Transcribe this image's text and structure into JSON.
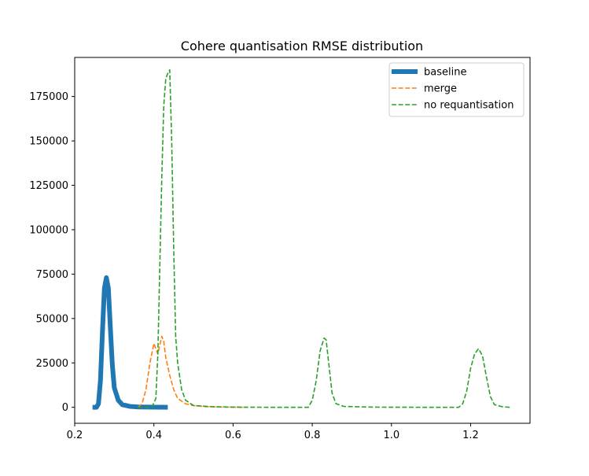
{
  "chart_data": {
    "type": "line",
    "title": "Cohere quantisation RMSE distribution",
    "xlabel": "",
    "ylabel": "",
    "xlim": [
      0.2,
      1.35
    ],
    "ylim": [
      -9000,
      197000
    ],
    "xticks": [
      0.2,
      0.4,
      0.6,
      0.8,
      1.0,
      1.2
    ],
    "xtick_labels": [
      "0.2",
      "0.4",
      "0.6",
      "0.8",
      "1.0",
      "1.2"
    ],
    "yticks": [
      0,
      25000,
      50000,
      75000,
      100000,
      125000,
      150000,
      175000
    ],
    "ytick_labels": [
      "0",
      "25000",
      "50000",
      "75000",
      "100000",
      "125000",
      "150000",
      "175000"
    ],
    "grid": false,
    "legend_position": "top-right",
    "series": [
      {
        "name": "baseline",
        "color": "#1f77b4",
        "style": "solid",
        "width": 6,
        "x": [
          0.245,
          0.255,
          0.26,
          0.265,
          0.27,
          0.275,
          0.28,
          0.285,
          0.29,
          0.295,
          0.3,
          0.31,
          0.32,
          0.34,
          0.36,
          0.4,
          0.435
        ],
        "y": [
          0,
          0,
          2000,
          15000,
          42000,
          67000,
          73000,
          67000,
          45000,
          24000,
          11000,
          4000,
          1500,
          500,
          200,
          100,
          0
        ]
      },
      {
        "name": "merge",
        "color": "#ff7f0e",
        "style": "dashed",
        "width": 1.6,
        "x": [
          0.36,
          0.37,
          0.38,
          0.39,
          0.4,
          0.405,
          0.41,
          0.415,
          0.42,
          0.425,
          0.43,
          0.44,
          0.45,
          0.46,
          0.48,
          0.5,
          0.53,
          0.56,
          0.6,
          0.625
        ],
        "y": [
          0,
          2000,
          10000,
          25000,
          36000,
          33000,
          30000,
          35000,
          40000,
          37000,
          28000,
          18000,
          10000,
          5000,
          2000,
          1000,
          400,
          200,
          100,
          0
        ]
      },
      {
        "name": "no requantisation",
        "color": "#2ca02c",
        "style": "dashed",
        "width": 1.6,
        "x": [
          0.36,
          0.38,
          0.395,
          0.405,
          0.41,
          0.415,
          0.42,
          0.425,
          0.43,
          0.435,
          0.44,
          0.445,
          0.45,
          0.455,
          0.46,
          0.47,
          0.48,
          0.5,
          0.55,
          0.6,
          0.7,
          0.79,
          0.8,
          0.81,
          0.82,
          0.83,
          0.835,
          0.84,
          0.85,
          0.86,
          0.88,
          0.95,
          1.1,
          1.17,
          1.18,
          1.19,
          1.2,
          1.21,
          1.22,
          1.23,
          1.24,
          1.25,
          1.26,
          1.28,
          1.3
        ],
        "y": [
          0,
          0,
          0,
          5000,
          30000,
          80000,
          130000,
          170000,
          185000,
          188000,
          190000,
          150000,
          90000,
          40000,
          25000,
          10000,
          4000,
          1000,
          300,
          100,
          0,
          0,
          4000,
          15000,
          32000,
          39000,
          38000,
          28000,
          8000,
          2000,
          500,
          100,
          0,
          0,
          2000,
          9000,
          22000,
          30000,
          33000,
          29000,
          17000,
          6000,
          1500,
          300,
          0
        ]
      }
    ]
  }
}
